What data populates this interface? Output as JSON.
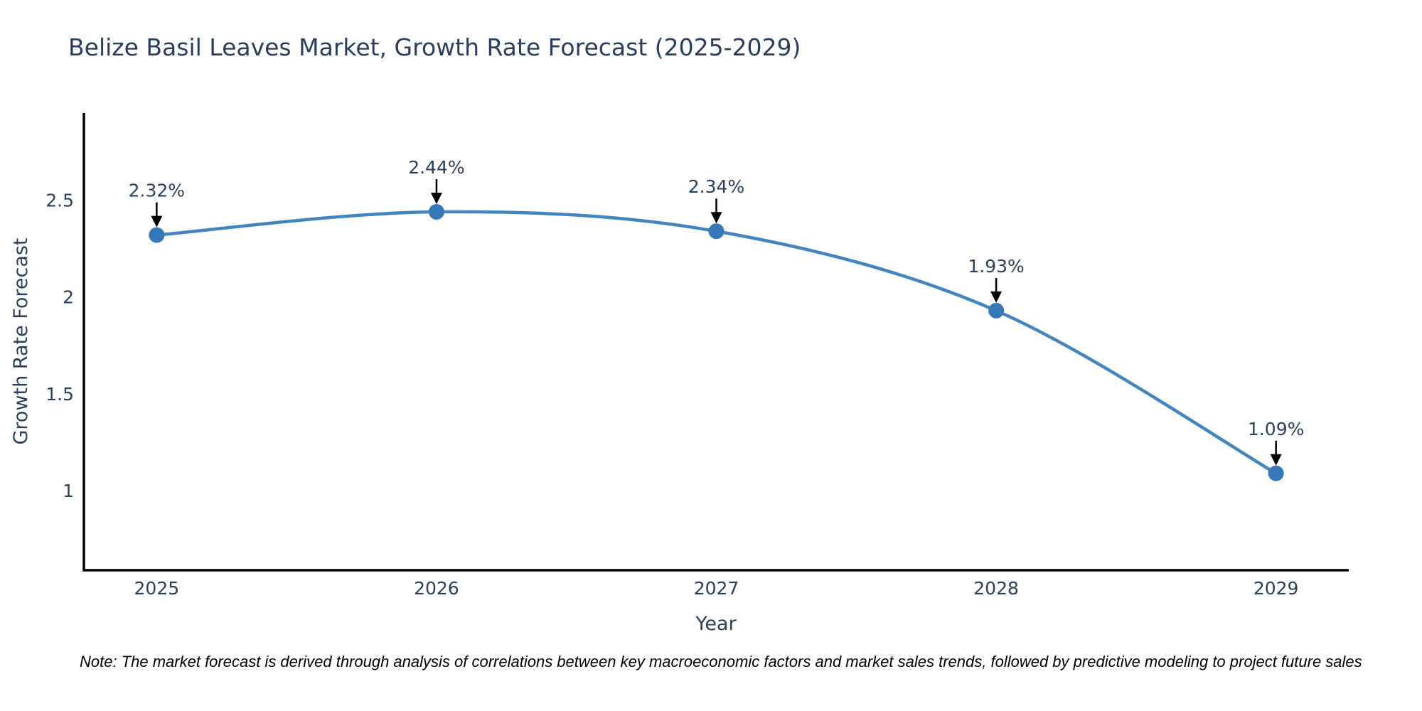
{
  "note": {
    "text": "Note: The market forecast is derived through analysis of correlations between key macroeconomic factors and market sales trends, followed by predictive modeling to project future sales"
  },
  "chart_data": {
    "type": "line",
    "title": "Belize Basil Leaves Market, Growth Rate Forecast (2025-2029)",
    "xlabel": "Year",
    "ylabel": "Growth Rate Forecast",
    "x": [
      2025,
      2026,
      2027,
      2028,
      2029
    ],
    "series": [
      {
        "name": "Growth Rate Forecast",
        "values": [
          2.32,
          2.44,
          2.34,
          1.93,
          1.09
        ]
      }
    ],
    "point_labels": [
      "2.32%",
      "2.44%",
      "2.34%",
      "1.93%",
      "1.09%"
    ],
    "xtick_labels": [
      "2025",
      "2026",
      "2027",
      "2028",
      "2029"
    ],
    "ytick_values": [
      1,
      1.5,
      2,
      2.5
    ],
    "ytick_labels": [
      "1",
      "1.5",
      "2",
      "2.5"
    ],
    "xlim": [
      2024.74,
      2029.26
    ],
    "ylim": [
      0.59,
      2.95
    ],
    "grid": false,
    "legend_position": "none",
    "line_shape": "spline",
    "annotation_style": "arrow-down-to-point",
    "colors": {
      "line": "#4186c0",
      "marker": "#3578b8",
      "arrow": "#000000",
      "axis": "#000000",
      "text": "#2a3f5f",
      "note_text": "#000000",
      "background": "#ffffff"
    }
  }
}
